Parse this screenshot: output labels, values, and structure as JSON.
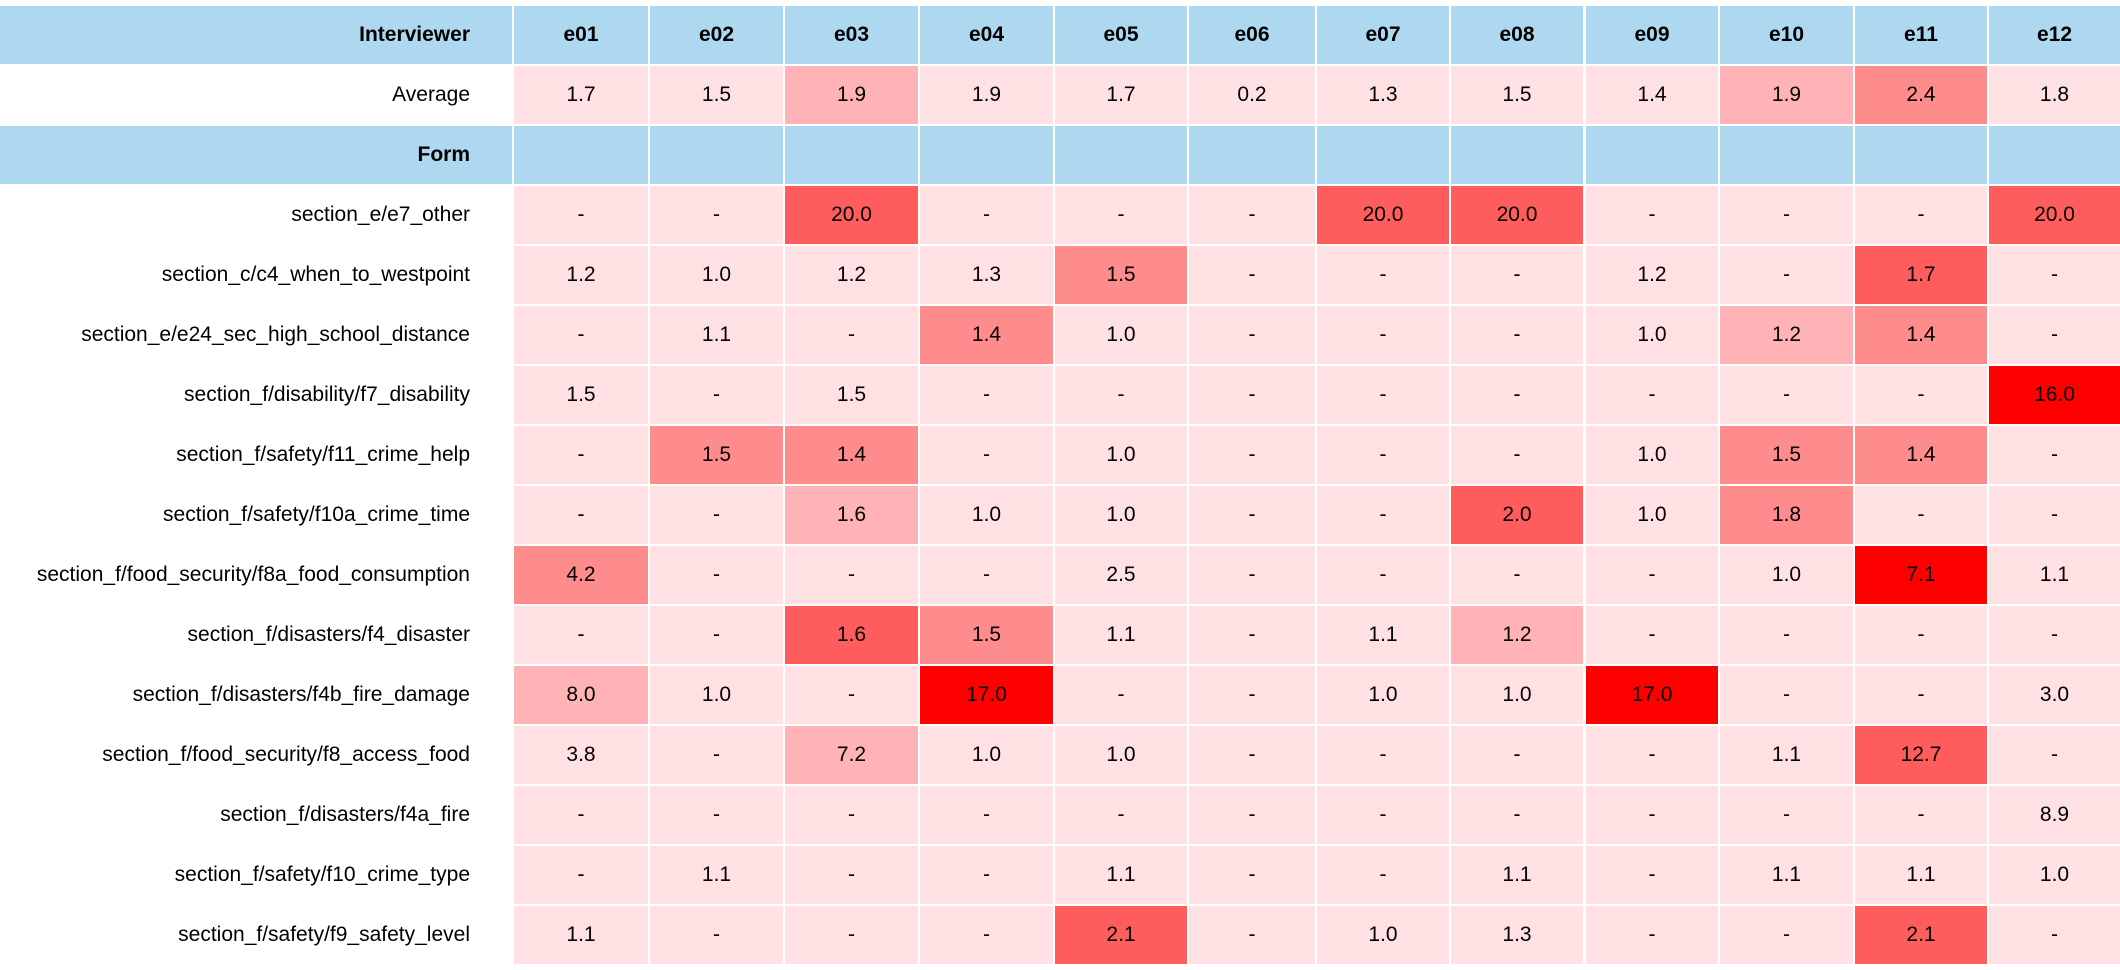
{
  "header": {
    "label": "Interviewer",
    "columns": [
      "e01",
      "e02",
      "e03",
      "e04",
      "e05",
      "e06",
      "e07",
      "e08",
      "e09",
      "e10",
      "e11",
      "e12"
    ]
  },
  "average": {
    "label": "Average",
    "values": [
      "1.7",
      "1.5",
      "1.9",
      "1.9",
      "1.7",
      "0.2",
      "1.3",
      "1.5",
      "1.4",
      "1.9",
      "2.4",
      "1.8"
    ],
    "levels": [
      0,
      0,
      1,
      0,
      0,
      0,
      0,
      0,
      0,
      1,
      2,
      0
    ]
  },
  "form_header": {
    "label": "Form"
  },
  "rows": [
    {
      "label": "section_e/e7_other",
      "values": [
        "-",
        "-",
        "20.0",
        "-",
        "-",
        "-",
        "20.0",
        "20.0",
        "-",
        "-",
        "-",
        "20.0"
      ],
      "levels": [
        0,
        0,
        3,
        0,
        0,
        0,
        3,
        3,
        0,
        0,
        0,
        3
      ]
    },
    {
      "label": "section_c/c4_when_to_westpoint",
      "values": [
        "1.2",
        "1.0",
        "1.2",
        "1.3",
        "1.5",
        "-",
        "-",
        "-",
        "1.2",
        "-",
        "1.7",
        "-"
      ],
      "levels": [
        0,
        0,
        0,
        0,
        2,
        0,
        0,
        0,
        0,
        0,
        3,
        0
      ]
    },
    {
      "label": "section_e/e24_sec_high_school_distance",
      "values": [
        "-",
        "1.1",
        "-",
        "1.4",
        "1.0",
        "-",
        "-",
        "-",
        "1.0",
        "1.2",
        "1.4",
        "-"
      ],
      "levels": [
        0,
        0,
        0,
        2,
        0,
        0,
        0,
        0,
        0,
        1,
        2,
        0
      ]
    },
    {
      "label": "section_f/disability/f7_disability",
      "values": [
        "1.5",
        "-",
        "1.5",
        "-",
        "-",
        "-",
        "-",
        "-",
        "-",
        "-",
        "-",
        "16.0"
      ],
      "levels": [
        0,
        0,
        0,
        0,
        0,
        0,
        0,
        0,
        0,
        0,
        0,
        4
      ]
    },
    {
      "label": "section_f/safety/f11_crime_help",
      "values": [
        "-",
        "1.5",
        "1.4",
        "-",
        "1.0",
        "-",
        "-",
        "-",
        "1.0",
        "1.5",
        "1.4",
        "-"
      ],
      "levels": [
        0,
        2,
        2,
        0,
        0,
        0,
        0,
        0,
        0,
        2,
        2,
        0
      ]
    },
    {
      "label": "section_f/safety/f10a_crime_time",
      "values": [
        "-",
        "-",
        "1.6",
        "1.0",
        "1.0",
        "-",
        "-",
        "2.0",
        "1.0",
        "1.8",
        "-",
        "-"
      ],
      "levels": [
        0,
        0,
        1,
        0,
        0,
        0,
        0,
        3,
        0,
        2,
        0,
        0
      ]
    },
    {
      "label": "section_f/food_security/f8a_food_consumption",
      "values": [
        "4.2",
        "-",
        "-",
        "-",
        "2.5",
        "-",
        "-",
        "-",
        "-",
        "1.0",
        "7.1",
        "1.1"
      ],
      "levels": [
        2,
        0,
        0,
        0,
        0,
        0,
        0,
        0,
        0,
        0,
        4,
        0
      ]
    },
    {
      "label": "section_f/disasters/f4_disaster",
      "values": [
        "-",
        "-",
        "1.6",
        "1.5",
        "1.1",
        "-",
        "1.1",
        "1.2",
        "-",
        "-",
        "-",
        "-"
      ],
      "levels": [
        0,
        0,
        3,
        2,
        0,
        0,
        0,
        1,
        0,
        0,
        0,
        0
      ]
    },
    {
      "label": "section_f/disasters/f4b_fire_damage",
      "values": [
        "8.0",
        "1.0",
        "-",
        "17.0",
        "-",
        "-",
        "1.0",
        "1.0",
        "17.0",
        "-",
        "-",
        "3.0"
      ],
      "levels": [
        1,
        0,
        0,
        4,
        0,
        0,
        0,
        0,
        4,
        0,
        0,
        0
      ]
    },
    {
      "label": "section_f/food_security/f8_access_food",
      "values": [
        "3.8",
        "-",
        "7.2",
        "1.0",
        "1.0",
        "-",
        "-",
        "-",
        "-",
        "1.1",
        "12.7",
        "-"
      ],
      "levels": [
        0,
        0,
        1,
        0,
        0,
        0,
        0,
        0,
        0,
        0,
        3,
        0
      ]
    },
    {
      "label": "section_f/disasters/f4a_fire",
      "values": [
        "-",
        "-",
        "-",
        "-",
        "-",
        "-",
        "-",
        "-",
        "-",
        "-",
        "-",
        "8.9"
      ],
      "levels": [
        0,
        0,
        0,
        0,
        0,
        0,
        0,
        0,
        0,
        0,
        0,
        0
      ]
    },
    {
      "label": "section_f/safety/f10_crime_type",
      "values": [
        "-",
        "1.1",
        "-",
        "-",
        "1.1",
        "-",
        "-",
        "1.1",
        "-",
        "1.1",
        "1.1",
        "1.0"
      ],
      "levels": [
        0,
        0,
        0,
        0,
        0,
        0,
        0,
        0,
        0,
        0,
        0,
        0
      ]
    },
    {
      "label": "section_f/safety/f9_safety_level",
      "values": [
        "1.1",
        "-",
        "-",
        "-",
        "2.1",
        "-",
        "1.0",
        "1.3",
        "-",
        "-",
        "2.1",
        "-"
      ],
      "levels": [
        0,
        0,
        0,
        0,
        3,
        0,
        0,
        0,
        0,
        0,
        3,
        0
      ]
    }
  ],
  "colors": {
    "header_blue": "#add8f0",
    "level_0": "#ffe0e3",
    "level_1": "#ffb3b6",
    "level_2": "#ff8c8c",
    "level_3": "#ff5d5d",
    "level_4": "#ff0000"
  }
}
